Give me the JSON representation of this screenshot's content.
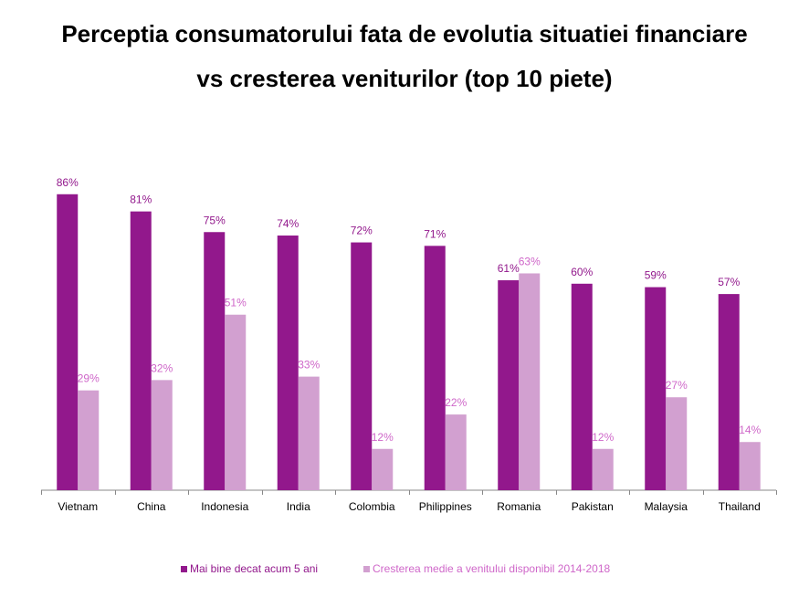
{
  "title_line1": "Perceptia consumatorului fata de evolutia situatiei financiare",
  "title_line2": "vs cresterea veniturilor (top 10 piete)",
  "colors": {
    "series1": "#92188c",
    "series2": "#d2a0d0",
    "series2_label": "#cf67c9",
    "axis": "#888888"
  },
  "chart_data": {
    "type": "bar",
    "categories": [
      "Vietnam",
      "China",
      "Indonesia",
      "India",
      "Colombia",
      "Philippines",
      "Romania",
      "Pakistan",
      "Malaysia",
      "Thailand"
    ],
    "series": [
      {
        "name": "Mai bine decat acum 5 ani",
        "values": [
          86,
          81,
          75,
          74,
          72,
          71,
          61,
          60,
          59,
          57
        ],
        "labels": [
          "86%",
          "81%",
          "75%",
          "74%",
          "72%",
          "71%",
          "61%",
          "60%",
          "59%",
          "57%"
        ]
      },
      {
        "name": "Cresterea medie a venitului disponibil 2014-2018",
        "values": [
          29,
          32,
          51,
          33,
          12,
          22,
          63,
          12,
          27,
          14
        ],
        "labels": [
          "29%",
          "32%",
          "51%",
          "33%",
          "12%",
          "22%",
          "63%",
          "12%",
          "27%",
          "14%"
        ]
      }
    ],
    "ylim": [
      0,
      100
    ],
    "grid": false,
    "legend_position": "bottom"
  }
}
